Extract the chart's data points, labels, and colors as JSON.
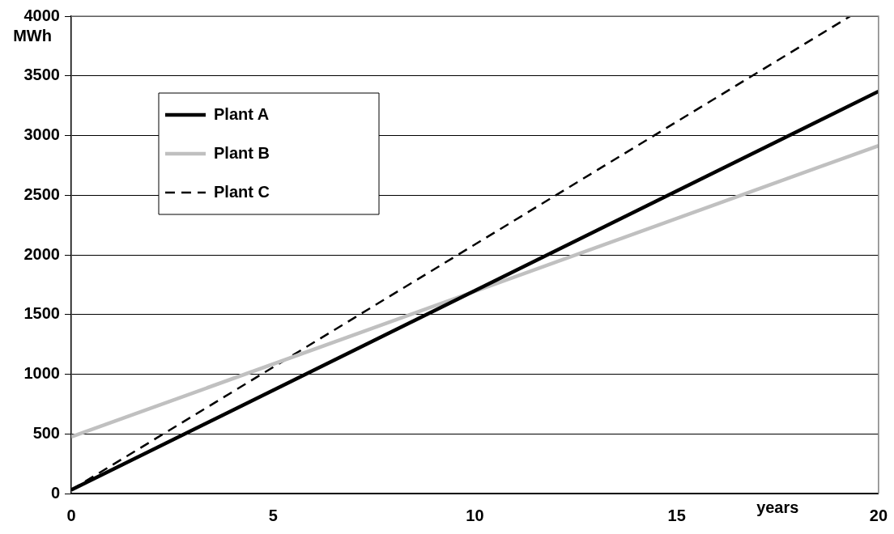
{
  "chart_data": {
    "type": "line",
    "xlabel": "years",
    "ylabel": "MWh",
    "xlim": [
      0,
      20
    ],
    "xticks": [
      0,
      5,
      10,
      15,
      20
    ],
    "ylim": [
      0,
      4000
    ],
    "yticks": [
      0,
      500,
      1000,
      1500,
      2000,
      2500,
      3000,
      3500,
      4000
    ],
    "grid": "y",
    "legend": "top left",
    "marker": "none",
    "series": [
      {
        "name": "Plant A",
        "color": "#000000",
        "x": [
          0,
          20
        ],
        "values": [
          30,
          3370
        ],
        "line_style": "solid"
      },
      {
        "name": "Plant B",
        "color": "#c0c0c0",
        "x": [
          0,
          20
        ],
        "values": [
          475,
          2915
        ],
        "line_style": "solid"
      },
      {
        "name": "Plant C",
        "color": "#000000",
        "x": [
          0,
          19.3
        ],
        "values": [
          30,
          4000
        ],
        "line_style": "dashed"
      }
    ]
  }
}
